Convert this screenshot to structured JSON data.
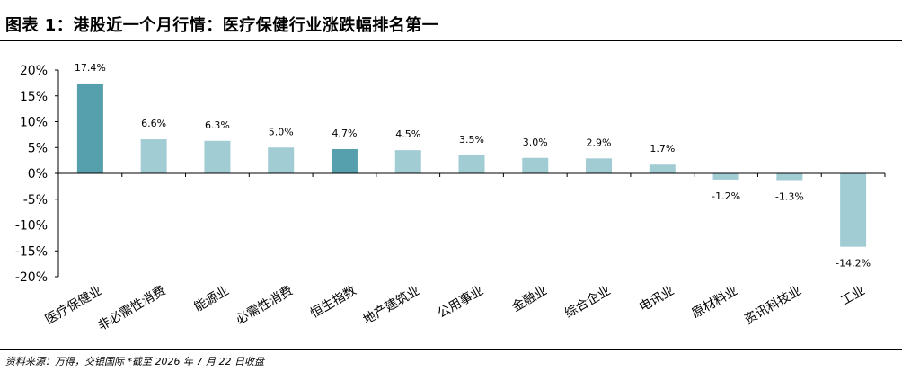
{
  "header": {
    "title": "图表 1：港股近一个月行情：医疗保健行业涨跌幅排名第一"
  },
  "footer": {
    "source": "资料来源：万得，交银国际  *截至 2026 年 7 月 22 日收盘"
  },
  "colors": {
    "highlight_bar": "#569fac",
    "normal_bar": "#a2ccd3",
    "axis": "#000000"
  },
  "chart_data": {
    "type": "bar",
    "categories": [
      "医疗保健业",
      "非必需性消费",
      "能源业",
      "必需性消费",
      "恒生指数",
      "地产建筑业",
      "公用事业",
      "金融业",
      "综合企业",
      "电讯业",
      "原材料业",
      "资讯科技业",
      "工业"
    ],
    "values": [
      17.4,
      6.6,
      6.3,
      5.0,
      4.7,
      4.5,
      3.5,
      3.0,
      2.9,
      1.7,
      -1.2,
      -1.3,
      -14.2
    ],
    "data_labels": [
      "17.4%",
      "6.6%",
      "6.3%",
      "5.0%",
      "4.7%",
      "4.5%",
      "3.5%",
      "3.0%",
      "2.9%",
      "1.7%",
      "-1.2%",
      "-1.3%",
      "-14.2%"
    ],
    "highlighted": [
      true,
      false,
      false,
      false,
      true,
      false,
      false,
      false,
      false,
      false,
      false,
      false,
      false
    ],
    "yticks": [
      20,
      15,
      10,
      5,
      0,
      -5,
      -10,
      -15,
      -20
    ],
    "ytick_labels": [
      "20%",
      "15%",
      "10%",
      "5%",
      "0%",
      "-5%",
      "-10%",
      "-15%",
      "-20%"
    ],
    "ylim": [
      -20,
      20
    ],
    "grid": false,
    "legend": "none",
    "title": "",
    "xlabel": "",
    "ylabel": ""
  }
}
